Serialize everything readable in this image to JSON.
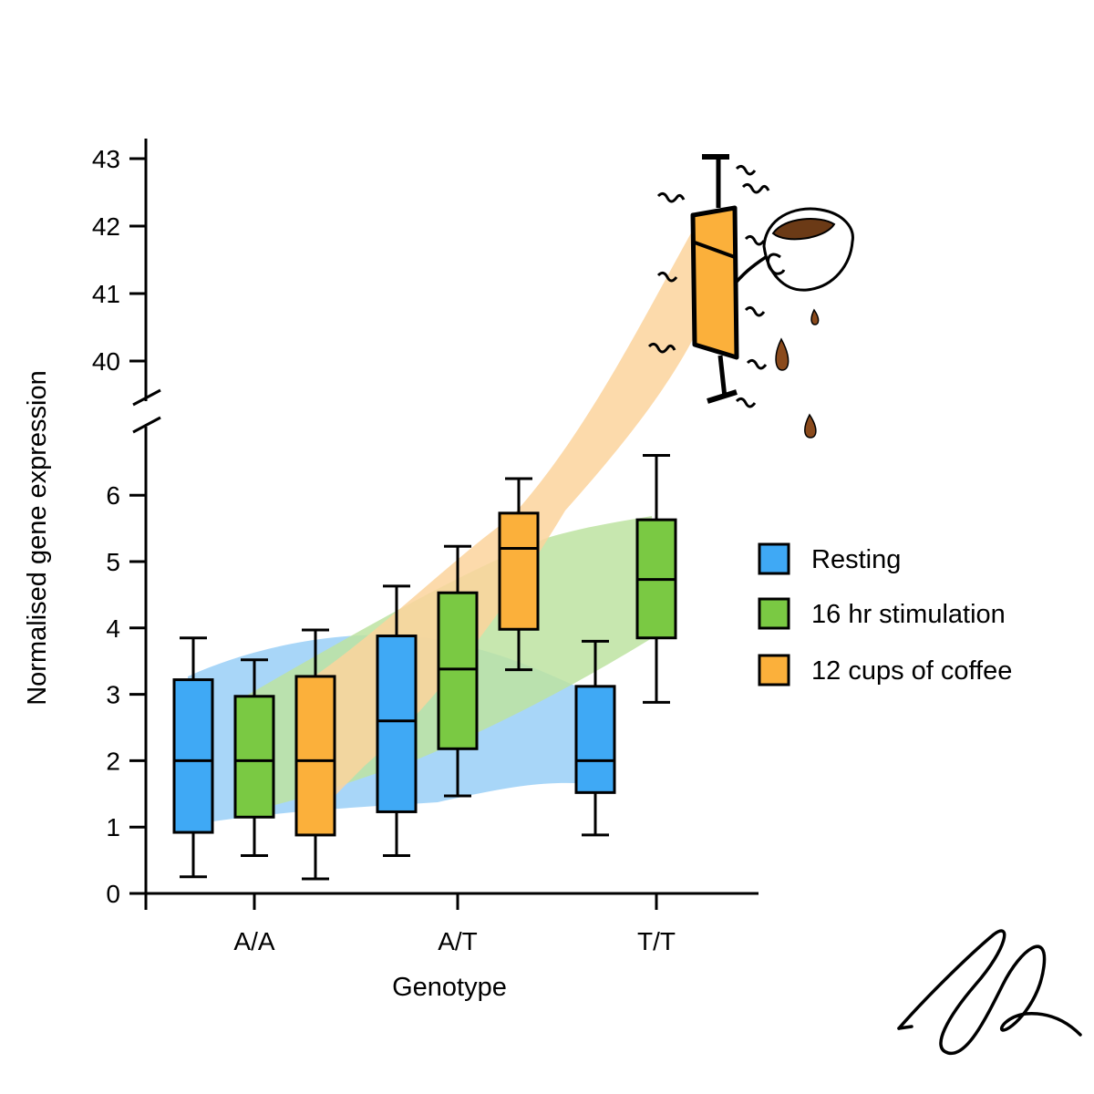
{
  "chart_data": {
    "type": "box",
    "xlabel": "Genotype",
    "ylabel": "Normalised gene expression",
    "categories": [
      "A/A",
      "A/T",
      "T/T"
    ],
    "y_axis": {
      "lower_segment": {
        "range": [
          0,
          6.8
        ],
        "ticks": [
          0,
          1,
          2,
          3,
          4,
          5,
          6
        ]
      },
      "upper_segment": {
        "range": [
          39.7,
          43.3
        ],
        "ticks": [
          40,
          41,
          42,
          43
        ]
      },
      "axis_break": true
    },
    "grid": false,
    "legend_placement": "right",
    "series": [
      {
        "name": "Resting",
        "color": "#3fa9f5",
        "band_color": "#9fd2f7",
        "boxes": [
          {
            "category": "A/A",
            "min": 0.25,
            "q1": 0.92,
            "median": 2.0,
            "q3": 3.22,
            "max": 3.85
          },
          {
            "category": "A/T",
            "min": 0.57,
            "q1": 1.23,
            "median": 2.6,
            "q3": 3.88,
            "max": 4.63
          },
          {
            "category": "T/T",
            "min": 0.88,
            "q1": 1.52,
            "median": 2.0,
            "q3": 3.12,
            "max": 3.8
          }
        ]
      },
      {
        "name": "16 hr stimulation",
        "color": "#7ac943",
        "band_color": "#bde3a1",
        "boxes": [
          {
            "category": "A/A",
            "min": 0.57,
            "q1": 1.15,
            "median": 2.0,
            "q3": 2.97,
            "max": 3.52
          },
          {
            "category": "A/T",
            "min": 1.47,
            "q1": 2.18,
            "median": 3.38,
            "q3": 4.53,
            "max": 5.23
          },
          {
            "category": "T/T",
            "min": 2.88,
            "q1": 3.85,
            "median": 4.73,
            "q3": 5.63,
            "max": 6.6
          }
        ]
      },
      {
        "name": "12 cups of coffee",
        "color": "#fbb03b",
        "band_color": "#fbd49c",
        "boxes": [
          {
            "category": "A/A",
            "min": 0.22,
            "q1": 0.88,
            "median": 2.0,
            "q3": 3.27,
            "max": 3.97
          },
          {
            "category": "A/T",
            "min": 3.37,
            "q1": 3.98,
            "median": 5.2,
            "q3": 5.73,
            "max": 6.25
          },
          {
            "category": "T/T",
            "min": 40.0,
            "q1": 40.3,
            "median": 41.75,
            "q3": 42.2,
            "max": 43.0
          }
        ]
      }
    ],
    "annotations": [
      "jittery stick-figure box plot holding a coffee cup"
    ]
  }
}
